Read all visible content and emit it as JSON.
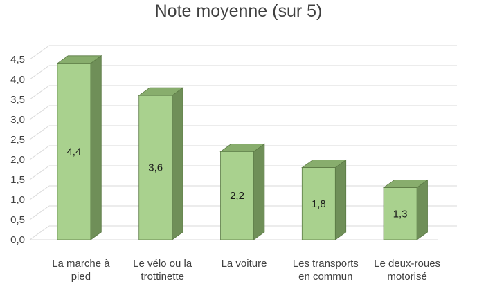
{
  "chart_data": {
    "type": "bar",
    "title": "Note moyenne (sur 5)",
    "categories": [
      [
        "La marche à",
        "pied"
      ],
      [
        "Le vélo ou la",
        "trottinette"
      ],
      [
        "La voiture"
      ],
      [
        "Les transports",
        "en commun"
      ],
      [
        "Le deux-roues",
        "motorisé"
      ]
    ],
    "values": [
      4.4,
      3.6,
      2.2,
      1.8,
      1.3
    ],
    "data_labels": [
      "4,4",
      "3,6",
      "2,2",
      "1,8",
      "1,3"
    ],
    "y_ticks": [
      "0,0",
      "0,5",
      "1,0",
      "1,5",
      "2,0",
      "2,5",
      "3,0",
      "3,5",
      "4,0",
      "4,5"
    ],
    "ylim": [
      0,
      4.5
    ],
    "style": "3d-column",
    "grid": true,
    "colors": {
      "front": "#a9d18e",
      "side": "#6f8f58",
      "top": "#88ad6d",
      "edge": "#5b7a45",
      "grid": "#d9d9d9"
    }
  }
}
